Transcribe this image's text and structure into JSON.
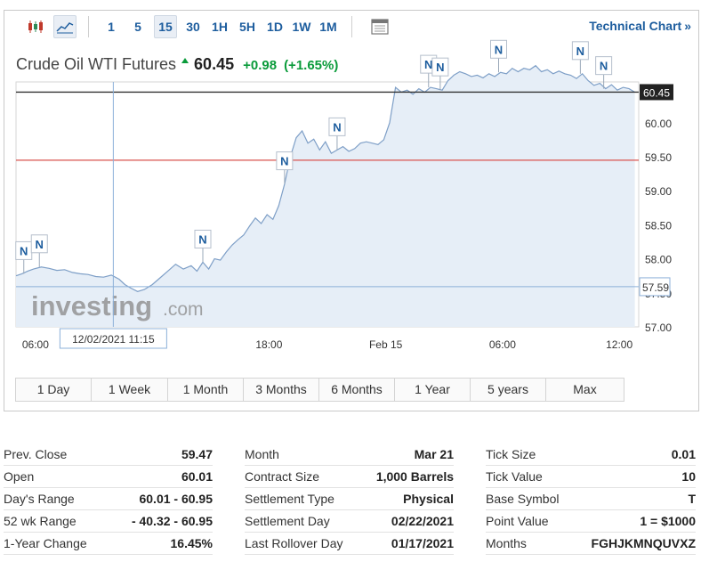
{
  "toolbar": {
    "candlestick_icon": "candlestick-icon",
    "line_icon": "line-chart-icon",
    "intervals": [
      "1",
      "5",
      "15",
      "30",
      "1H",
      "5H",
      "1D",
      "1W",
      "1M"
    ],
    "active_interval": "15",
    "calendar_icon": "calendar-icon",
    "technical_link": "Technical Chart",
    "technical_arrow": "»"
  },
  "quote": {
    "name": "Crude Oil WTI Futures",
    "last": "60.45",
    "change": "+0.98",
    "change_pct": "(+1.65%)",
    "up_color": "#0a9b3a"
  },
  "watermark": {
    "brand": "investing",
    "suffix": ".com"
  },
  "chart_data": {
    "type": "area",
    "ylim": [
      57.0,
      60.6
    ],
    "y_ticks": [
      57.0,
      57.5,
      58.0,
      58.5,
      59.0,
      59.5,
      60.0
    ],
    "y_tick_labels": [
      "57.00",
      "57.50",
      "58.00",
      "58.50",
      "59.00",
      "59.50",
      "60.00"
    ],
    "x_tick_labels": [
      {
        "label": "06:00",
        "t": 6.0
      },
      {
        "label": "18:00",
        "t": 18.0
      },
      {
        "label": "Feb 15",
        "t": 24.0
      },
      {
        "label": "06:00",
        "t": 30.0
      },
      {
        "label": "12:00",
        "t": 36.0
      }
    ],
    "t_range": [
      5.0,
      37.0
    ],
    "series": [
      {
        "t": [
          5.0,
          5.3,
          5.6,
          5.9,
          6.3,
          6.7,
          7.1,
          7.5,
          7.9,
          8.3,
          8.7,
          9.1,
          9.5,
          9.9,
          10.3,
          10.6,
          10.9,
          11.25,
          11.6,
          12.0,
          12.4,
          12.8,
          13.2,
          13.6,
          14.0,
          14.3,
          14.6,
          14.9,
          15.2,
          15.5,
          15.8,
          16.1,
          16.4,
          16.7,
          17.0,
          17.3,
          17.6,
          17.9,
          18.2,
          18.5,
          18.8,
          19.1,
          19.4,
          19.7,
          20.0,
          20.3,
          20.6,
          20.9,
          21.2,
          21.5,
          21.8,
          22.1,
          22.4,
          22.7,
          23.0,
          23.3,
          23.6,
          23.9,
          24.2,
          24.5,
          24.8,
          25.1,
          25.4,
          25.7,
          26.0,
          26.3,
          26.6,
          26.9,
          27.2,
          27.5,
          27.8,
          28.1,
          28.4,
          28.7,
          29.0,
          29.3,
          29.6,
          29.9,
          30.2,
          30.5,
          30.8,
          31.1,
          31.4,
          31.7,
          32.0,
          32.3,
          32.6,
          32.9,
          33.2,
          33.5,
          33.8,
          34.1,
          34.4,
          34.7,
          35.0,
          35.3,
          35.6,
          35.9,
          36.2,
          36.5,
          36.8
        ],
        "y": [
          57.75,
          57.78,
          57.82,
          57.85,
          57.88,
          57.86,
          57.83,
          57.84,
          57.8,
          57.78,
          57.77,
          57.74,
          57.73,
          57.76,
          57.7,
          57.62,
          57.57,
          57.52,
          57.55,
          57.62,
          57.72,
          57.82,
          57.92,
          57.85,
          57.9,
          57.82,
          57.95,
          57.85,
          58.0,
          57.98,
          58.1,
          58.2,
          58.28,
          58.35,
          58.48,
          58.6,
          58.52,
          58.65,
          58.58,
          58.78,
          59.1,
          59.5,
          59.78,
          59.88,
          59.7,
          59.76,
          59.6,
          59.72,
          59.55,
          59.6,
          59.65,
          59.58,
          59.62,
          59.7,
          59.72,
          59.7,
          59.68,
          59.75,
          60.0,
          60.52,
          60.45,
          60.48,
          60.42,
          60.5,
          60.45,
          60.52,
          60.5,
          60.48,
          60.62,
          60.7,
          60.75,
          60.72,
          60.68,
          60.7,
          60.66,
          60.72,
          60.68,
          60.74,
          60.72,
          60.8,
          60.75,
          60.8,
          60.78,
          60.84,
          60.75,
          60.78,
          60.72,
          60.76,
          60.72,
          60.7,
          60.65,
          60.72,
          60.62,
          60.55,
          60.58,
          60.5,
          60.56,
          60.48,
          60.52,
          60.5,
          60.45
        ]
      }
    ],
    "last_value_label": "60.45",
    "hover_value_label": "57.59",
    "crosshair_time_label": "12/02/2021 11:15",
    "crosshair_t": 10.0,
    "crosshair_y": 57.59,
    "last_value": 60.45,
    "red_line_value": 59.45,
    "news_markers": [
      {
        "label": "N",
        "t": 5.4
      },
      {
        "label": "N",
        "t": 6.2
      },
      {
        "label": "N",
        "t": 14.6
      },
      {
        "label": "N",
        "t": 18.8
      },
      {
        "label": "N",
        "t": 21.5
      },
      {
        "label": "N",
        "t": 26.2
      },
      {
        "label": "N",
        "t": 26.8
      },
      {
        "label": "N",
        "t": 29.8
      },
      {
        "label": "N",
        "t": 34.0
      },
      {
        "label": "N",
        "t": 35.2
      }
    ],
    "colors": {
      "line": "#7e9fc7",
      "fill": "#e6eef7",
      "crosshair": "#8cb0d9",
      "last_line": "#333333",
      "red_line": "#d9534f",
      "grid_border": "#d6d6d6"
    }
  },
  "ranges": [
    "1 Day",
    "1 Week",
    "1 Month",
    "3 Months",
    "6 Months",
    "1 Year",
    "5 years",
    "Max"
  ],
  "stats": [
    [
      {
        "label": "Prev. Close",
        "value": "59.47"
      },
      {
        "label": "Open",
        "value": "60.01"
      },
      {
        "label": "Day's Range",
        "value": "60.01 - 60.95"
      },
      {
        "label": "52 wk Range",
        "value": "- 40.32 - 60.95"
      },
      {
        "label": "1-Year Change",
        "value": "16.45%"
      }
    ],
    [
      {
        "label": "Month",
        "value": "Mar 21"
      },
      {
        "label": "Contract Size",
        "value": "1,000 Barrels"
      },
      {
        "label": "Settlement Type",
        "value": "Physical"
      },
      {
        "label": "Settlement Day",
        "value": "02/22/2021"
      },
      {
        "label": "Last Rollover Day",
        "value": "01/17/2021"
      }
    ],
    [
      {
        "label": "Tick Size",
        "value": "0.01"
      },
      {
        "label": "Tick Value",
        "value": "10"
      },
      {
        "label": "Base Symbol",
        "value": "T"
      },
      {
        "label": "Point Value",
        "value": "1 = $1000"
      },
      {
        "label": "Months",
        "value": "FGHJKMNQUVXZ"
      }
    ]
  ]
}
